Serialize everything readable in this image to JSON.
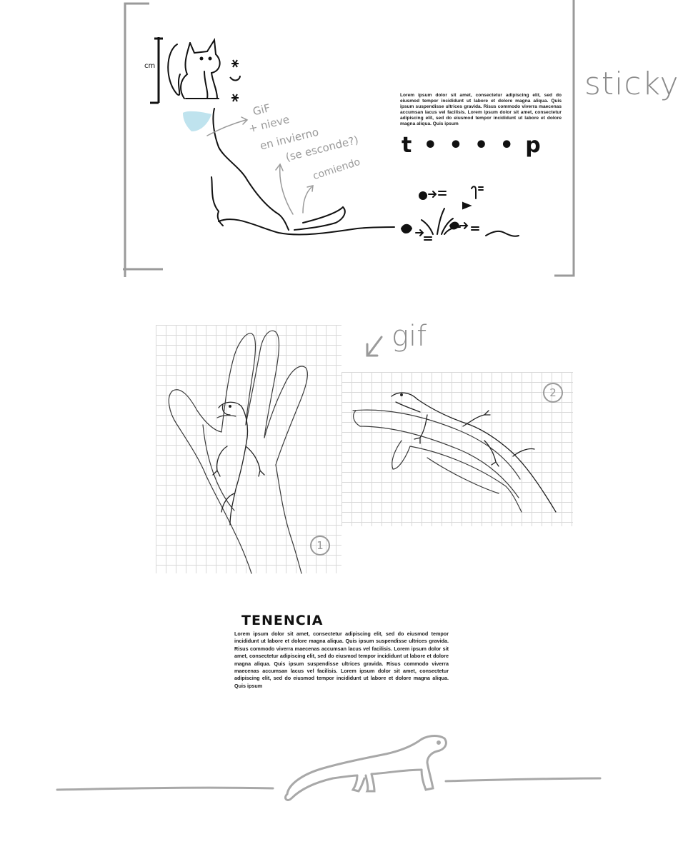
{
  "labels": {
    "sticky": "sticky",
    "gif": "gif"
  },
  "sketch_notes": {
    "gif": "GiF",
    "nieve": "+ nieve",
    "invierno": "en invierno",
    "esconde": "(se esconde?)",
    "comiendo": "comiendo"
  },
  "top_block": {
    "lorem": "Lorem ipsum dolor sit amet, consectetur adipiscing elit, sed do eiusmod tempor incididunt ut labore et dolore magna aliqua. Quis ipsum suspendisse ultrices gravida. Risus commodo viverra maecenas accumsan lacus vel facilisis. Lorem ipsum dolor sit amet, consectetur adipiscing elit, sed do eiusmod tempor incididunt ut labore et dolore magna aliqua. Quis ipsum",
    "dots_label": "t • • • • p"
  },
  "panels": {
    "panel_1_number": "1",
    "panel_2_number": "2"
  },
  "tenencia": {
    "title": "TENENCIA",
    "body": "Lorem ipsum dolor sit amet, consectetur adipiscing elit, sed do eiusmod tempor incididunt ut labore et dolore magna aliqua. Quis ipsum suspendisse ultrices gravida. Risus commodo viverra maecenas accumsan lacus vel facilisis. Lorem ipsum dolor sit amet, consectetur adipiscing elit, sed do eiusmod tempor incididunt ut labore et dolore magna aliqua. Quis ipsum suspendisse ultrices gravida. Risus commodo viverra maecenas accumsan lacus vel facilisis. Lorem ipsum dolor sit amet, consectetur adipiscing elit, sed do eiusmod tempor incididunt ut labore et dolore magna aliqua. Quis ipsum"
  },
  "colors": {
    "frame": "#9a9a9a",
    "ink": "#111111",
    "pencil": "#8a8a8a",
    "accent_blue": "#bfe3ee"
  },
  "icons": {
    "fox": "fox-sketch-icon",
    "lizard": "lizard-sketch-icon"
  }
}
